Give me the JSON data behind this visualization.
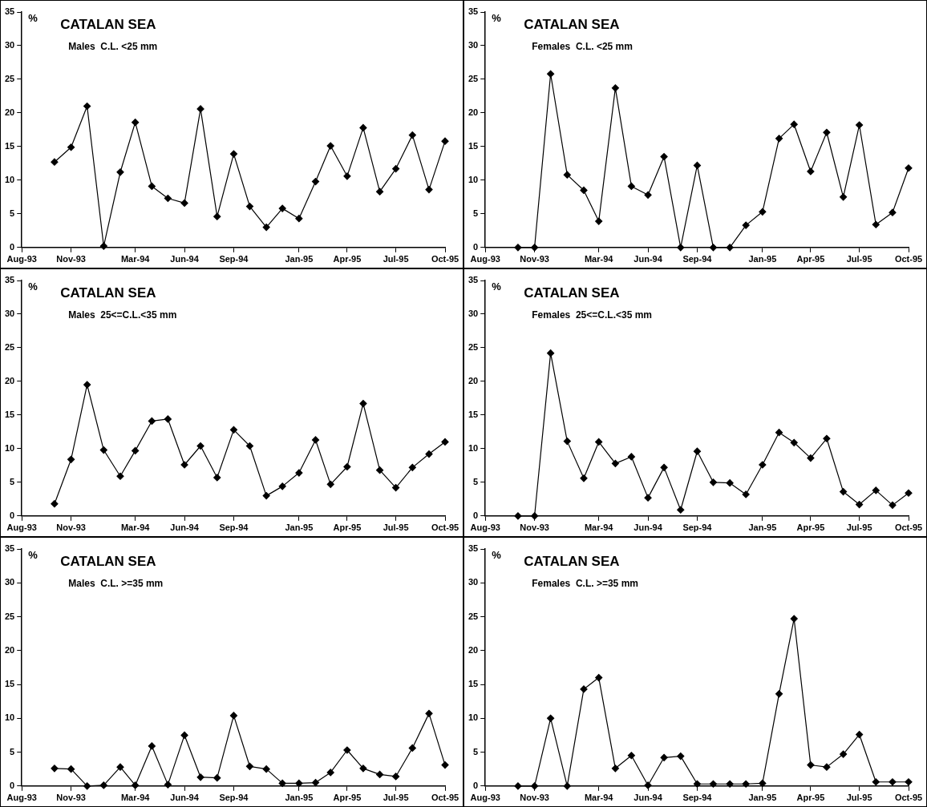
{
  "chart_data": [
    {
      "type": "line",
      "title": "CATALAN SEA",
      "subtitle": "Males  C.L. <25 mm",
      "ylabel": "%",
      "color": "#000000",
      "marker": "diamond",
      "xlim": [
        "1993-08",
        "1995-10"
      ],
      "ylim": [
        0,
        35
      ],
      "yticks": [
        0,
        5,
        10,
        15,
        20,
        25,
        30,
        35
      ],
      "xticks": [
        {
          "value": "1993-08",
          "label": "Aug-93"
        },
        {
          "value": "1993-11",
          "label": "Nov-93"
        },
        {
          "value": "1994-03",
          "label": "Mar-94"
        },
        {
          "value": "1994-06",
          "label": "Jun-94"
        },
        {
          "value": "1994-09",
          "label": "Sep-94"
        },
        {
          "value": "1995-01",
          "label": "Jan-95"
        },
        {
          "value": "1995-04",
          "label": "Apr-95"
        },
        {
          "value": "1995-07",
          "label": "Jul-95"
        },
        {
          "value": "1995-10",
          "label": "Oct-95"
        }
      ],
      "x": [
        "1993-10",
        "1993-11",
        "1993-12",
        "1994-01",
        "1994-02",
        "1994-03",
        "1994-04",
        "1994-05",
        "1994-06",
        "1994-07",
        "1994-08",
        "1994-09",
        "1994-10",
        "1994-11",
        "1994-12",
        "1995-01",
        "1995-02",
        "1995-03",
        "1995-04",
        "1995-05",
        "1995-06",
        "1995-07",
        "1995-08",
        "1995-09",
        "1995-10"
      ],
      "values": [
        12.7,
        14.9,
        21.0,
        0.2,
        11.2,
        18.6,
        9.1,
        7.3,
        6.6,
        20.6,
        4.6,
        13.9,
        6.1,
        3.0,
        5.8,
        4.3,
        9.8,
        15.1,
        10.6,
        17.8,
        8.3,
        11.7,
        16.7,
        8.6,
        15.8
      ]
    },
    {
      "type": "line",
      "title": "CATALAN SEA",
      "subtitle": "Females  C.L. <25 mm",
      "ylabel": "%",
      "color": "#000000",
      "marker": "diamond",
      "xlim": [
        "1993-08",
        "1995-10"
      ],
      "ylim": [
        0,
        35
      ],
      "yticks": [
        0,
        5,
        10,
        15,
        20,
        25,
        30,
        35
      ],
      "xticks": [
        {
          "value": "1993-08",
          "label": "Aug-93"
        },
        {
          "value": "1993-11",
          "label": "Nov-93"
        },
        {
          "value": "1994-03",
          "label": "Mar-94"
        },
        {
          "value": "1994-06",
          "label": "Jun-94"
        },
        {
          "value": "1994-09",
          "label": "Sep-94"
        },
        {
          "value": "1995-01",
          "label": "Jan-95"
        },
        {
          "value": "1995-04",
          "label": "Apr-95"
        },
        {
          "value": "1995-07",
          "label": "Jul-95"
        },
        {
          "value": "1995-10",
          "label": "Oct-95"
        }
      ],
      "x": [
        "1993-10",
        "1993-11",
        "1993-12",
        "1994-01",
        "1994-02",
        "1994-03",
        "1994-04",
        "1994-05",
        "1994-06",
        "1994-07",
        "1994-08",
        "1994-09",
        "1994-10",
        "1994-11",
        "1994-12",
        "1995-01",
        "1995-02",
        "1995-03",
        "1995-04",
        "1995-05",
        "1995-06",
        "1995-07",
        "1995-08",
        "1995-09",
        "1995-10"
      ],
      "values": [
        0,
        0,
        25.8,
        10.8,
        8.5,
        3.9,
        23.7,
        9.1,
        7.8,
        13.5,
        0,
        12.2,
        0,
        0,
        3.3,
        5.3,
        16.2,
        18.3,
        11.3,
        17.1,
        7.5,
        18.2,
        3.4,
        5.2,
        11.8
      ]
    },
    {
      "type": "line",
      "title": "CATALAN SEA",
      "subtitle": "Males  25<=C.L.<35 mm",
      "ylabel": "%",
      "color": "#000000",
      "marker": "diamond",
      "xlim": [
        "1993-08",
        "1995-10"
      ],
      "ylim": [
        0,
        35
      ],
      "yticks": [
        0,
        5,
        10,
        15,
        20,
        25,
        30,
        35
      ],
      "xticks": [
        {
          "value": "1993-08",
          "label": "Aug-93"
        },
        {
          "value": "1993-11",
          "label": "Nov-93"
        },
        {
          "value": "1994-03",
          "label": "Mar-94"
        },
        {
          "value": "1994-06",
          "label": "Jun-94"
        },
        {
          "value": "1994-09",
          "label": "Sep-94"
        },
        {
          "value": "1995-01",
          "label": "Jan-95"
        },
        {
          "value": "1995-04",
          "label": "Apr-95"
        },
        {
          "value": "1995-07",
          "label": "Jul-95"
        },
        {
          "value": "1995-10",
          "label": "Oct-95"
        }
      ],
      "x": [
        "1993-10",
        "1993-11",
        "1993-12",
        "1994-01",
        "1994-02",
        "1994-03",
        "1994-04",
        "1994-05",
        "1994-06",
        "1994-07",
        "1994-08",
        "1994-09",
        "1994-10",
        "1994-11",
        "1994-12",
        "1995-01",
        "1995-02",
        "1995-03",
        "1995-04",
        "1995-05",
        "1995-06",
        "1995-07",
        "1995-08",
        "1995-09",
        "1995-10"
      ],
      "values": [
        1.8,
        8.4,
        19.5,
        9.8,
        5.9,
        9.7,
        14.1,
        14.4,
        7.6,
        10.4,
        5.7,
        12.8,
        10.4,
        3.0,
        4.4,
        6.4,
        11.3,
        4.7,
        7.3,
        16.7,
        6.8,
        4.2,
        7.2,
        9.2,
        11.0
      ]
    },
    {
      "type": "line",
      "title": "CATALAN SEA",
      "subtitle": "Females  25<=C.L.<35 mm",
      "ylabel": "%",
      "color": "#000000",
      "marker": "diamond",
      "xlim": [
        "1993-08",
        "1995-10"
      ],
      "ylim": [
        0,
        35
      ],
      "yticks": [
        0,
        5,
        10,
        15,
        20,
        25,
        30,
        35
      ],
      "xticks": [
        {
          "value": "1993-08",
          "label": "Aug-93"
        },
        {
          "value": "1993-11",
          "label": "Nov-93"
        },
        {
          "value": "1994-03",
          "label": "Mar-94"
        },
        {
          "value": "1994-06",
          "label": "Jun-94"
        },
        {
          "value": "1994-09",
          "label": "Sep-94"
        },
        {
          "value": "1995-01",
          "label": "Jan-95"
        },
        {
          "value": "1995-04",
          "label": "Apr-95"
        },
        {
          "value": "1995-07",
          "label": "Jul-95"
        },
        {
          "value": "1995-10",
          "label": "Oct-95"
        }
      ],
      "x": [
        "1993-10",
        "1993-11",
        "1993-12",
        "1994-01",
        "1994-02",
        "1994-03",
        "1994-04",
        "1994-05",
        "1994-06",
        "1994-07",
        "1994-08",
        "1994-09",
        "1994-10",
        "1994-11",
        "1994-12",
        "1995-01",
        "1995-02",
        "1995-03",
        "1995-04",
        "1995-05",
        "1995-06",
        "1995-07",
        "1995-08",
        "1995-09",
        "1995-10"
      ],
      "values": [
        0,
        0,
        24.2,
        11.1,
        5.6,
        11.0,
        7.8,
        8.8,
        2.7,
        7.2,
        0.9,
        9.6,
        5.0,
        4.9,
        3.2,
        7.6,
        12.4,
        10.9,
        8.6,
        11.5,
        3.6,
        1.7,
        3.8,
        1.6,
        3.4
      ]
    },
    {
      "type": "line",
      "title": "CATALAN SEA",
      "subtitle": "Males  C.L. >=35 mm",
      "ylabel": "%",
      "color": "#000000",
      "marker": "diamond",
      "xlim": [
        "1993-08",
        "1995-10"
      ],
      "ylim": [
        0,
        35
      ],
      "yticks": [
        0,
        5,
        10,
        15,
        20,
        25,
        30,
        35
      ],
      "xticks": [
        {
          "value": "1993-08",
          "label": "Aug-93"
        },
        {
          "value": "1993-11",
          "label": "Nov-93"
        },
        {
          "value": "1994-03",
          "label": "Mar-94"
        },
        {
          "value": "1994-06",
          "label": "Jun-94"
        },
        {
          "value": "1994-09",
          "label": "Sep-94"
        },
        {
          "value": "1995-01",
          "label": "Jan-95"
        },
        {
          "value": "1995-04",
          "label": "Apr-95"
        },
        {
          "value": "1995-07",
          "label": "Jul-95"
        },
        {
          "value": "1995-10",
          "label": "Oct-95"
        }
      ],
      "x": [
        "1993-10",
        "1993-11",
        "1993-12",
        "1994-01",
        "1994-02",
        "1994-03",
        "1994-04",
        "1994-05",
        "1994-06",
        "1994-07",
        "1994-08",
        "1994-09",
        "1994-10",
        "1994-11",
        "1994-12",
        "1995-01",
        "1995-02",
        "1995-03",
        "1995-04",
        "1995-05",
        "1995-06",
        "1995-07",
        "1995-08",
        "1995-09",
        "1995-10"
      ],
      "values": [
        2.6,
        2.5,
        0,
        0.1,
        2.8,
        0.1,
        5.9,
        0.2,
        7.5,
        1.3,
        1.2,
        10.4,
        2.9,
        2.5,
        0.4,
        0.4,
        0.5,
        2.0,
        5.3,
        2.6,
        1.7,
        1.4,
        5.6,
        10.7,
        3.1
      ]
    },
    {
      "type": "line",
      "title": "CATALAN SEA",
      "subtitle": "Females  C.L. >=35 mm",
      "ylabel": "%",
      "color": "#000000",
      "marker": "diamond",
      "xlim": [
        "1993-08",
        "1995-10"
      ],
      "ylim": [
        0,
        35
      ],
      "yticks": [
        0,
        5,
        10,
        15,
        20,
        25,
        30,
        35
      ],
      "xticks": [
        {
          "value": "1993-08",
          "label": "Aug-93"
        },
        {
          "value": "1993-11",
          "label": "Nov-93"
        },
        {
          "value": "1994-03",
          "label": "Mar-94"
        },
        {
          "value": "1994-06",
          "label": "Jun-94"
        },
        {
          "value": "1994-09",
          "label": "Sep-94"
        },
        {
          "value": "1995-01",
          "label": "Jan-95"
        },
        {
          "value": "1995-04",
          "label": "Apr-95"
        },
        {
          "value": "1995-07",
          "label": "Jul-95"
        },
        {
          "value": "1995-10",
          "label": "Oct-95"
        }
      ],
      "x": [
        "1993-10",
        "1993-11",
        "1993-12",
        "1994-01",
        "1994-02",
        "1994-03",
        "1994-04",
        "1994-05",
        "1994-06",
        "1994-07",
        "1994-08",
        "1994-09",
        "1994-10",
        "1994-11",
        "1994-12",
        "1995-01",
        "1995-02",
        "1995-03",
        "1995-04",
        "1995-05",
        "1995-06",
        "1995-07",
        "1995-08",
        "1995-09",
        "1995-10"
      ],
      "values": [
        0,
        0,
        10.0,
        0,
        14.3,
        16.0,
        2.6,
        4.5,
        0.1,
        4.2,
        4.4,
        0.3,
        0.3,
        0.3,
        0.3,
        0.4,
        13.6,
        24.7,
        3.1,
        2.8,
        4.7,
        7.6,
        0.6,
        0.6,
        0.6
      ]
    }
  ]
}
